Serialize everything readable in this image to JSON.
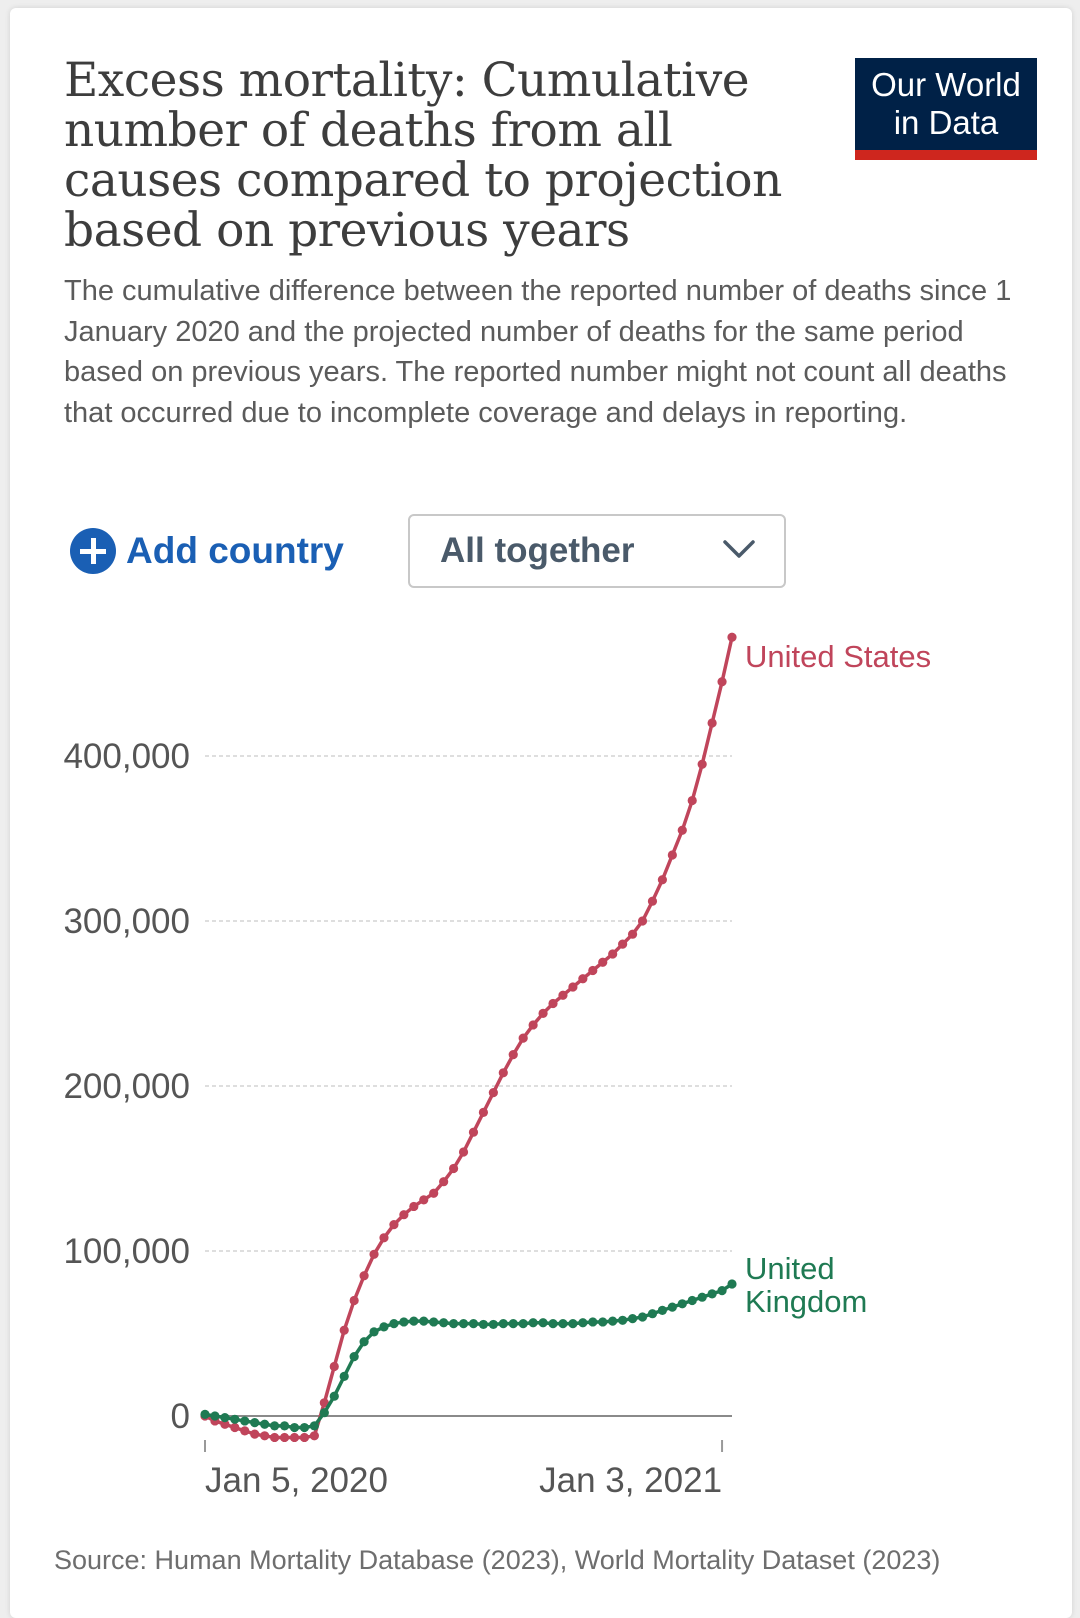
{
  "header": {
    "title": "Excess mortality: Cumulative number of deaths from all causes compared to projection based on previous years",
    "subtitle": "The cumulative difference between the reported number of deaths since 1 January 2020 and the projected number of deaths for the same period based on previous years. The reported number might not count all deaths that occurred due to incomplete coverage and delays in reporting.",
    "logo_line1": "Our World",
    "logo_line2": "in Data"
  },
  "controls": {
    "add_country_label": "Add country",
    "view_select_value": "All together"
  },
  "footer": {
    "source": "Source: Human Mortality Database (2023), World Mortality Dataset (2023)"
  },
  "colors": {
    "us": "#c0455b",
    "uk": "#1f7a53",
    "accent": "#1a5fb4",
    "logo_bg": "#002147",
    "logo_bar": "#ce261e"
  },
  "chart_data": {
    "type": "line",
    "x_unit": "week",
    "ylim": [
      0,
      450000
    ],
    "yticks": [
      0,
      100000,
      200000,
      300000,
      400000
    ],
    "ytick_labels": [
      "0",
      "100,000",
      "200,000",
      "300,000",
      "400,000"
    ],
    "xtick_labels": [
      "Jan 5, 2020",
      "Jan 3, 2021"
    ],
    "xtick_positions": [
      0,
      52
    ],
    "grid": true,
    "series": [
      {
        "name": "United States",
        "label": "United States",
        "values": [
          0,
          -3000,
          -5000,
          -7000,
          -9000,
          -11000,
          -12000,
          -13000,
          -13000,
          -13000,
          -13000,
          -12000,
          8000,
          30000,
          52000,
          70000,
          85000,
          98000,
          108000,
          116000,
          122000,
          127000,
          131000,
          135000,
          142000,
          150000,
          160000,
          172000,
          184000,
          196000,
          208000,
          219000,
          229000,
          237000,
          244000,
          250000,
          255000,
          260000,
          265000,
          270000,
          275000,
          280000,
          286000,
          292000,
          300000,
          312000,
          325000,
          340000,
          355000,
          373000,
          395000,
          420000,
          445000,
          472000
        ]
      },
      {
        "name": "United Kingdom",
        "label": "United Kingdom",
        "values": [
          1000,
          0,
          -1000,
          -2000,
          -3000,
          -4000,
          -5000,
          -6000,
          -6000,
          -7000,
          -7000,
          -6000,
          2000,
          12000,
          24000,
          36000,
          45000,
          51000,
          54000,
          56000,
          57000,
          57500,
          57500,
          57000,
          56500,
          56000,
          56000,
          56000,
          55500,
          55500,
          56000,
          56000,
          56000,
          56500,
          56500,
          56000,
          56000,
          56000,
          56500,
          57000,
          57000,
          57500,
          58000,
          59000,
          60000,
          62000,
          64000,
          66000,
          68000,
          70000,
          72000,
          74000,
          76000,
          80000
        ]
      }
    ]
  }
}
